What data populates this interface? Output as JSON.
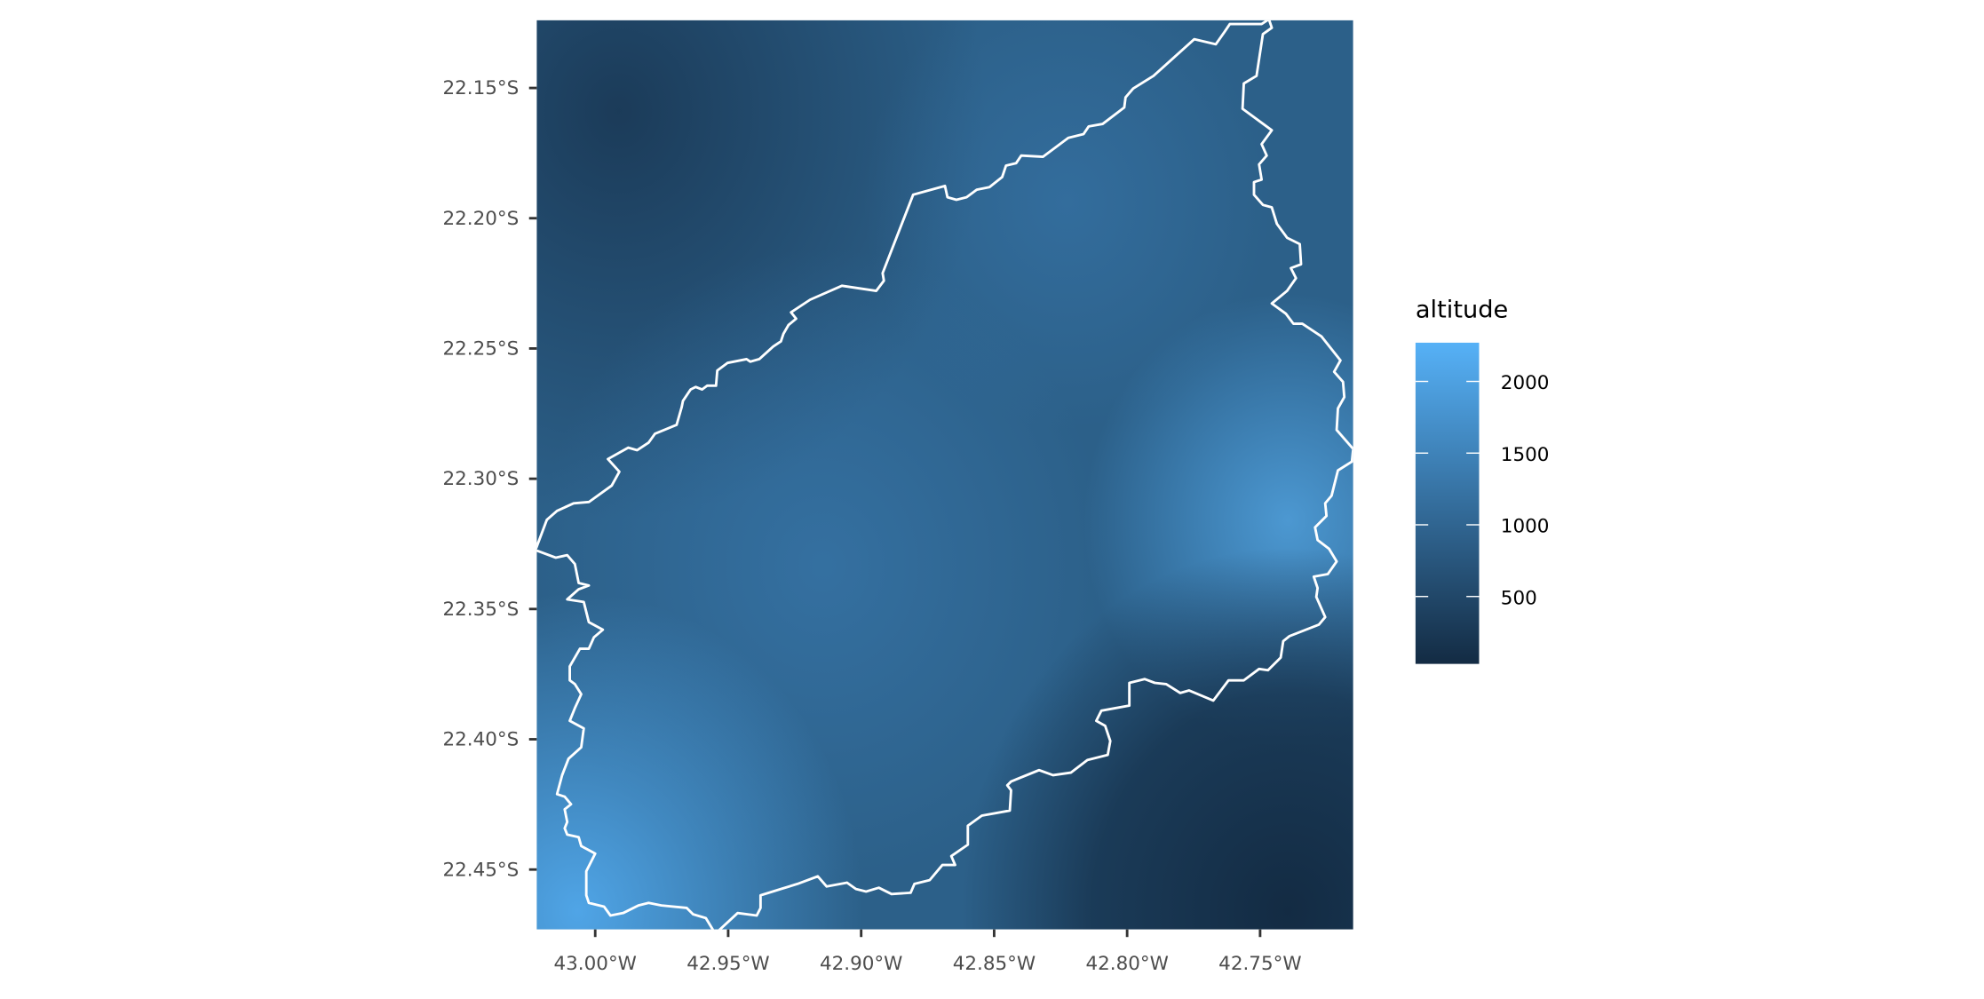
{
  "chart_data": {
    "type": "heatmap",
    "subtype": "raster map with boundary outline",
    "fill_variable": "altitude",
    "legend": {
      "title": "altitude",
      "placement": "right",
      "breaks": [
        2000,
        1500,
        1000,
        500
      ],
      "labels": [
        "2000",
        "1500",
        "1000",
        "500"
      ],
      "limits": [
        30,
        2270
      ],
      "color_low": "#132B43",
      "color_high": "#56B1F7"
    },
    "x_axis": {
      "ticks": [
        -43.0,
        -42.95,
        -42.9,
        -42.85,
        -42.8,
        -42.75
      ],
      "tick_labels": [
        "43.00°W",
        "42.95°W",
        "42.90°W",
        "42.85°W",
        "42.80°W",
        "42.75°W"
      ],
      "range": [
        -43.022,
        -42.715
      ]
    },
    "y_axis": {
      "ticks": [
        -22.15,
        -22.2,
        -22.25,
        -22.3,
        -22.35,
        -22.4,
        -22.45
      ],
      "tick_labels": [
        "22.15°S",
        "22.20°S",
        "22.25°S",
        "22.30°S",
        "22.35°S",
        "22.40°S",
        "22.45°S"
      ],
      "range": [
        -22.473,
        -22.124
      ]
    },
    "boundary_color": "#FFFFFF",
    "grid": false
  }
}
